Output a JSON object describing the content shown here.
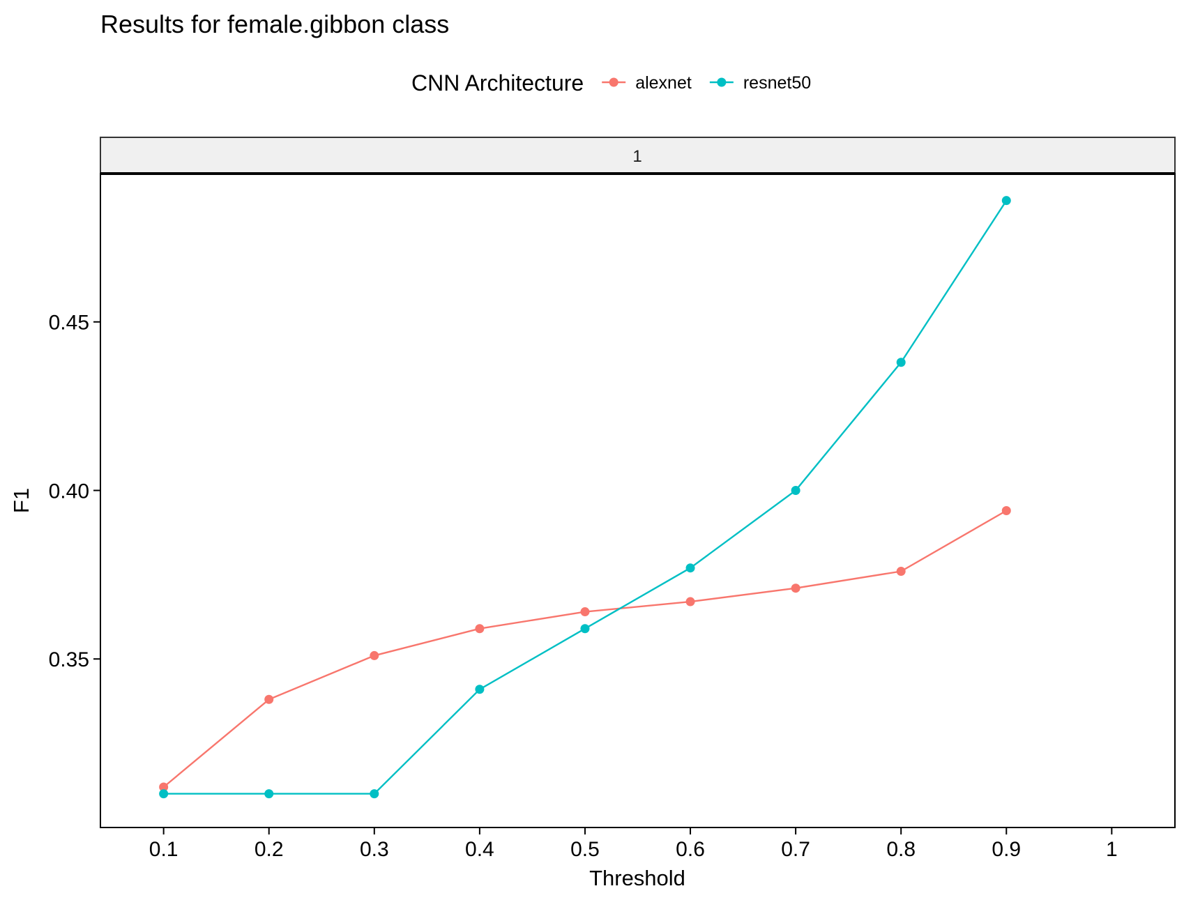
{
  "chart_data": {
    "type": "line",
    "title": "Results for female.gibbon class",
    "xlabel": "Threshold",
    "ylabel": "F1",
    "facet_label": "1",
    "legend": {
      "title": "CNN Architecture",
      "position": "top"
    },
    "x_ticks": [
      "0.1",
      "0.2",
      "0.3",
      "0.4",
      "0.5",
      "0.6",
      "0.7",
      "0.8",
      "0.9",
      "1"
    ],
    "y_ticks": [
      "0.35",
      "0.40",
      "0.45"
    ],
    "xlim": [
      0.04,
      1.06
    ],
    "ylim": [
      0.3,
      0.494
    ],
    "grid": false,
    "x": [
      0.1,
      0.2,
      0.3,
      0.4,
      0.5,
      0.6,
      0.7,
      0.8,
      0.9
    ],
    "series": [
      {
        "name": "alexnet",
        "color": "#F8766D",
        "values": [
          0.312,
          0.338,
          0.351,
          0.359,
          0.364,
          0.367,
          0.371,
          0.376,
          0.394
        ]
      },
      {
        "name": "resnet50",
        "color": "#00BFC4",
        "values": [
          0.31,
          0.31,
          0.31,
          0.341,
          0.359,
          0.377,
          0.4,
          0.438,
          0.486
        ]
      }
    ]
  }
}
